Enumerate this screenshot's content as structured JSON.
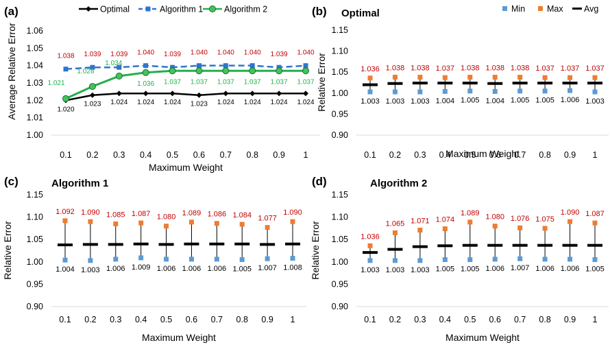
{
  "chart_data": [
    {
      "id": "a",
      "panel_label": "(a)",
      "type": "line",
      "title": "",
      "xlabel": "Maximum Weight",
      "ylabel": "Average Relative Error",
      "x": [
        0.1,
        0.2,
        0.3,
        0.4,
        0.5,
        0.6,
        0.7,
        0.8,
        0.9,
        1
      ],
      "x_tick_labels": [
        "0.1",
        "0.2",
        "0.3",
        "0.4",
        "0.5",
        "0.6",
        "0.7",
        "0.8",
        "0.9",
        "1"
      ],
      "ylim": [
        1.0,
        1.06
      ],
      "y_ticks": [
        1.0,
        1.01,
        1.02,
        1.03,
        1.04,
        1.05,
        1.06
      ],
      "y_tick_labels": [
        "1.00",
        "1.01",
        "1.02",
        "1.03",
        "1.04",
        "1.05",
        "1.06"
      ],
      "grid": false,
      "legend_position": "top",
      "series": [
        {
          "name": "Optimal",
          "color": "#000000",
          "marker": "diamond",
          "dash": "solid",
          "values": [
            1.02,
            1.023,
            1.024,
            1.024,
            1.024,
            1.023,
            1.024,
            1.024,
            1.024,
            1.024
          ],
          "labels": [
            "1.020",
            "1.023",
            "1.024",
            "1.024",
            "1.024",
            "1.023",
            "1.024",
            "1.024",
            "1.024",
            "1.024"
          ],
          "label_color": "#000000"
        },
        {
          "name": "Algorithm 1",
          "color": "#2e75d0",
          "marker": "square",
          "dash": "dashed",
          "values": [
            1.038,
            1.039,
            1.039,
            1.04,
            1.039,
            1.04,
            1.04,
            1.04,
            1.039,
            1.04
          ],
          "labels": [
            "1.038",
            "1.039",
            "1.039",
            "1.040",
            "1.039",
            "1.040",
            "1.040",
            "1.040",
            "1.039",
            "1.040"
          ],
          "label_color": "#c00000"
        },
        {
          "name": "Algorithm 2",
          "color": "#22b14c",
          "marker": "circle",
          "dash": "solid",
          "values": [
            1.021,
            1.028,
            1.034,
            1.036,
            1.037,
            1.037,
            1.037,
            1.037,
            1.037,
            1.037
          ],
          "labels": [
            "1.021",
            "1.028",
            "1.034",
            "1.036",
            "1.037",
            "1.037",
            "1.037",
            "1.037",
            "1.037",
            "1.037"
          ],
          "label_color": "#22b14c"
        }
      ]
    },
    {
      "id": "b",
      "panel_label": "(b)",
      "type": "scatter",
      "title": "Optimal",
      "xlabel": "Maximum Weight",
      "ylabel": "Relative Error",
      "x": [
        0.1,
        0.2,
        0.3,
        0.4,
        0.5,
        0.6,
        0.7,
        0.8,
        0.9,
        1
      ],
      "x_tick_labels": [
        "0.1",
        "0.2",
        "0.3",
        "0.4",
        "0.5",
        "0.6",
        "0.7",
        "0.8",
        "0.9",
        "1"
      ],
      "ylim": [
        0.9,
        1.15
      ],
      "y_ticks": [
        0.9,
        0.95,
        1.0,
        1.05,
        1.1,
        1.15
      ],
      "y_tick_labels": [
        "0.90",
        "0.95",
        "1.00",
        "1.05",
        "1.10",
        "1.15"
      ],
      "grid": false,
      "legend_position": "top-right",
      "legend": [
        {
          "name": "Min",
          "color": "#5b9bd5",
          "shape": "square"
        },
        {
          "name": "Max",
          "color": "#ed7d31",
          "shape": "square"
        },
        {
          "name": "Avg",
          "color": "#000000",
          "shape": "bar"
        }
      ],
      "min": [
        1.003,
        1.003,
        1.003,
        1.004,
        1.005,
        1.004,
        1.005,
        1.005,
        1.006,
        1.003
      ],
      "max": [
        1.036,
        1.038,
        1.038,
        1.037,
        1.038,
        1.038,
        1.038,
        1.037,
        1.037,
        1.037
      ],
      "avg": [
        1.02,
        1.023,
        1.024,
        1.024,
        1.024,
        1.023,
        1.024,
        1.024,
        1.024,
        1.024
      ],
      "min_labels": [
        "1.003",
        "1.003",
        "1.003",
        "1.004",
        "1.005",
        "1.004",
        "1.005",
        "1.005",
        "1.006",
        "1.003"
      ],
      "max_labels": [
        "1.036",
        "1.038",
        "1.038",
        "1.037",
        "1.038",
        "1.038",
        "1.038",
        "1.037",
        "1.037",
        "1.037"
      ]
    },
    {
      "id": "c",
      "panel_label": "(c)",
      "type": "scatter",
      "title": "Algorithm 1",
      "xlabel": "Maximum Weight",
      "ylabel": "Relative Error",
      "x": [
        0.1,
        0.2,
        0.3,
        0.4,
        0.5,
        0.6,
        0.7,
        0.8,
        0.9,
        1
      ],
      "x_tick_labels": [
        "0.1",
        "0.2",
        "0.3",
        "0.4",
        "0.5",
        "0.6",
        "0.7",
        "0.8",
        "0.9",
        "1"
      ],
      "ylim": [
        0.9,
        1.15
      ],
      "y_ticks": [
        0.9,
        0.95,
        1.0,
        1.05,
        1.1,
        1.15
      ],
      "y_tick_labels": [
        "0.90",
        "0.95",
        "1.00",
        "1.05",
        "1.10",
        "1.15"
      ],
      "grid": false,
      "min": [
        1.004,
        1.003,
        1.006,
        1.009,
        1.006,
        1.006,
        1.006,
        1.005,
        1.007,
        1.008
      ],
      "max": [
        1.092,
        1.09,
        1.085,
        1.087,
        1.08,
        1.089,
        1.086,
        1.084,
        1.077,
        1.09
      ],
      "avg": [
        1.038,
        1.039,
        1.039,
        1.04,
        1.039,
        1.04,
        1.04,
        1.04,
        1.039,
        1.04
      ],
      "min_labels": [
        "1.004",
        "1.003",
        "1.006",
        "1.009",
        "1.006",
        "1.006",
        "1.006",
        "1.005",
        "1.007",
        "1.008"
      ],
      "max_labels": [
        "1.092",
        "1.090",
        "1.085",
        "1.087",
        "1.080",
        "1.089",
        "1.086",
        "1.084",
        "1.077",
        "1.090"
      ]
    },
    {
      "id": "d",
      "panel_label": "(d)",
      "type": "scatter",
      "title": "Algorithm 2",
      "xlabel": "Maximum Weight",
      "ylabel": "Relative Error",
      "x": [
        0.1,
        0.2,
        0.3,
        0.4,
        0.5,
        0.6,
        0.7,
        0.8,
        0.9,
        1
      ],
      "x_tick_labels": [
        "0.1",
        "0.2",
        "0.3",
        "0.4",
        "0.5",
        "0.6",
        "0.7",
        "0.8",
        "0.9",
        "1"
      ],
      "ylim": [
        0.9,
        1.15
      ],
      "y_ticks": [
        0.9,
        0.95,
        1.0,
        1.05,
        1.1,
        1.15
      ],
      "y_tick_labels": [
        "0.90",
        "0.95",
        "1.00",
        "1.05",
        "1.10",
        "1.15"
      ],
      "grid": false,
      "min": [
        1.003,
        1.003,
        1.003,
        1.005,
        1.005,
        1.006,
        1.007,
        1.006,
        1.006,
        1.005
      ],
      "max": [
        1.036,
        1.065,
        1.071,
        1.074,
        1.089,
        1.08,
        1.076,
        1.075,
        1.09,
        1.087
      ],
      "avg": [
        1.021,
        1.028,
        1.034,
        1.036,
        1.037,
        1.037,
        1.037,
        1.037,
        1.037,
        1.037
      ],
      "min_labels": [
        "1.003",
        "1.003",
        "1.003",
        "1.005",
        "1.005",
        "1.006",
        "1.007",
        "1.006",
        "1.006",
        "1.005"
      ],
      "max_labels": [
        "1.036",
        "1.065",
        "1.071",
        "1.074",
        "1.089",
        "1.080",
        "1.076",
        "1.075",
        "1.090",
        "1.087"
      ]
    }
  ],
  "colors": {
    "axis": "#d9d9d9",
    "text": "#000000",
    "max_label": "#c00000",
    "min_label": "#000000",
    "whisker": "#000000"
  }
}
